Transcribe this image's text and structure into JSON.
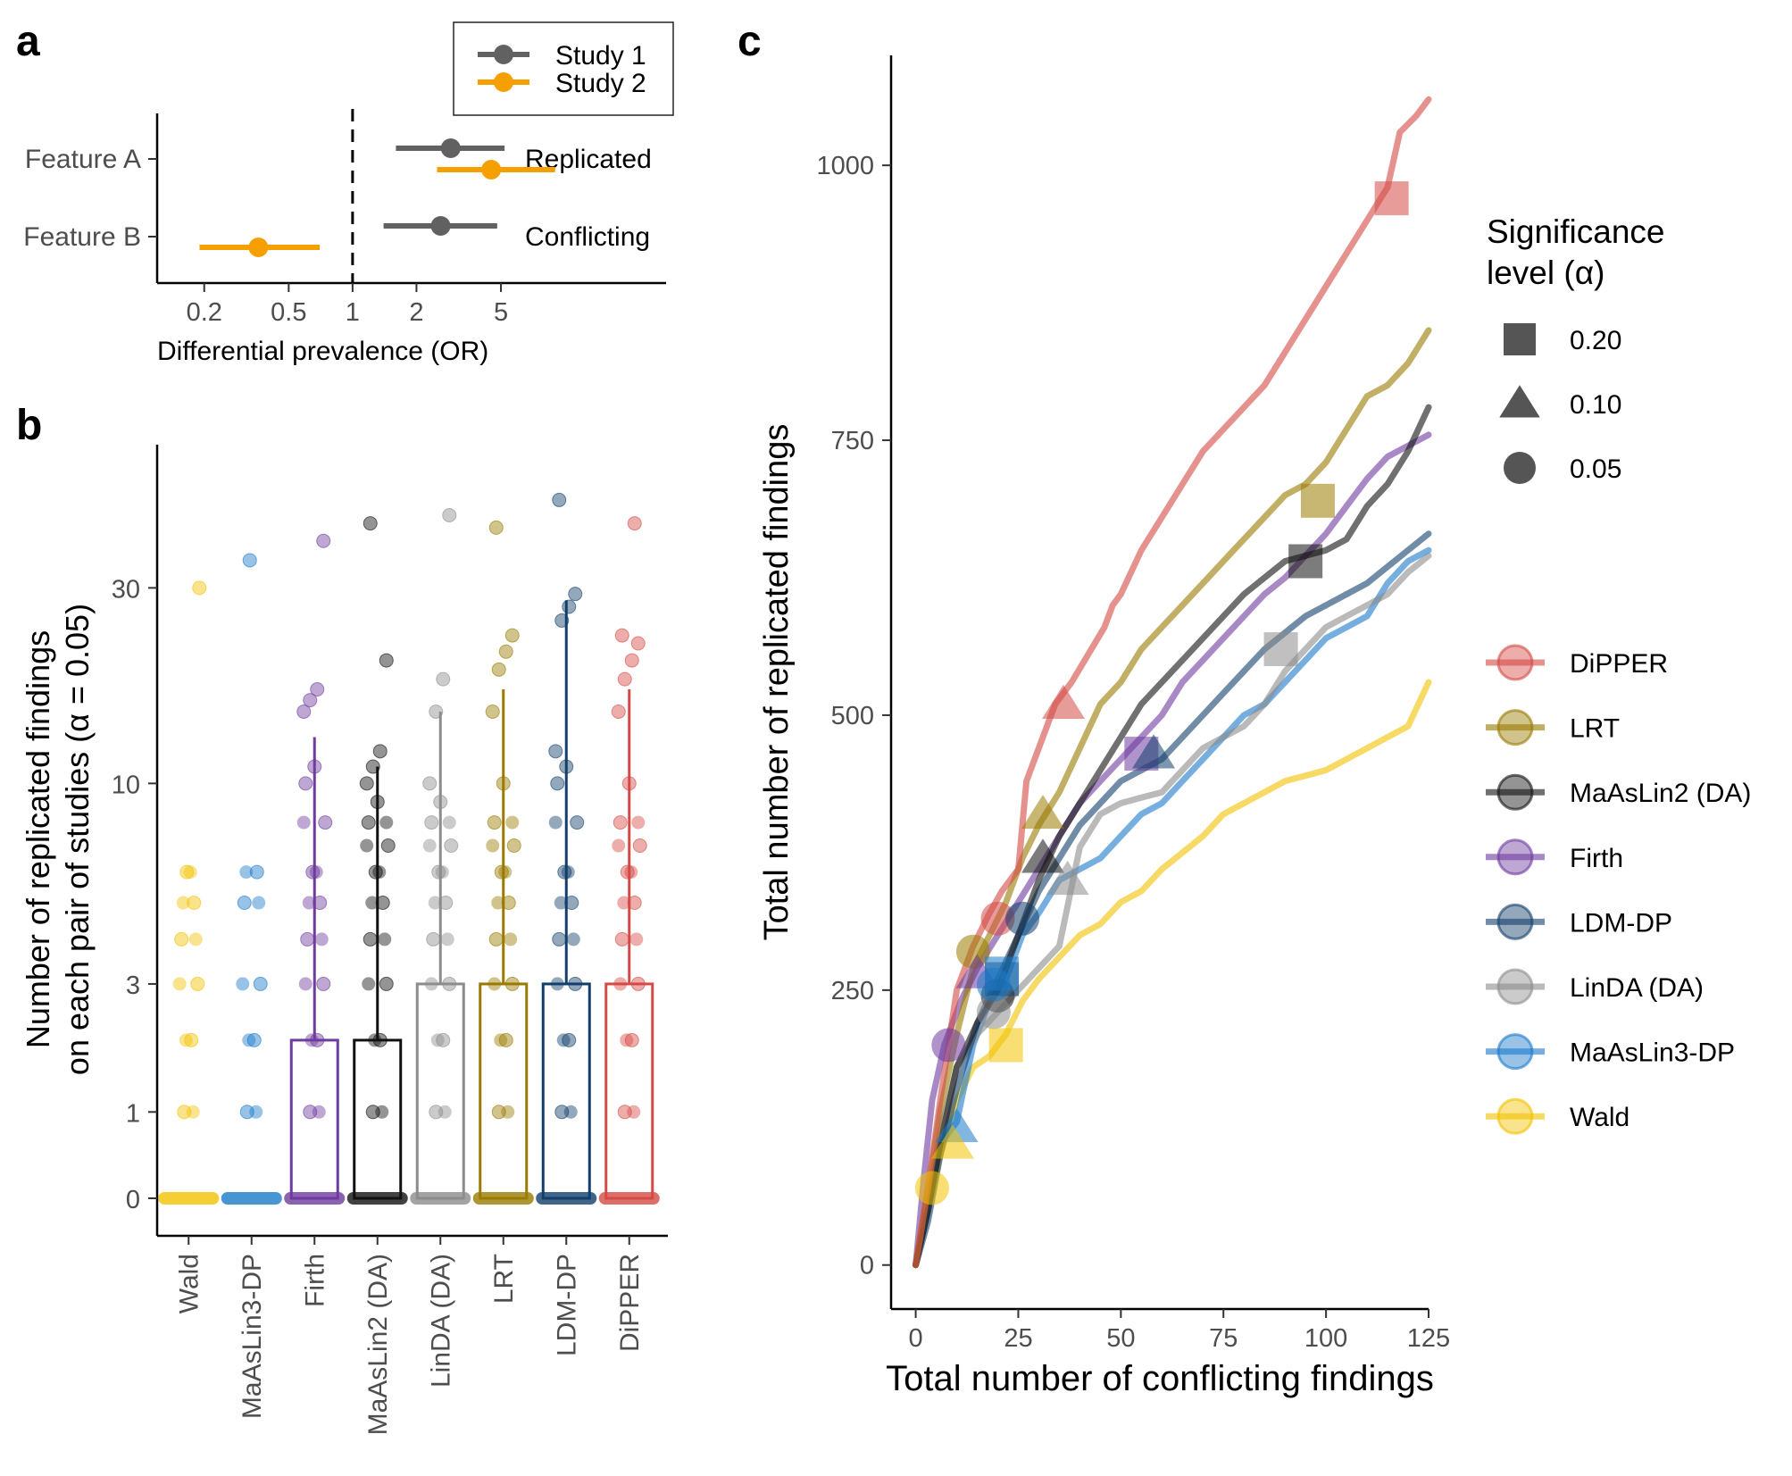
{
  "panel_labels": {
    "a": "a",
    "b": "b",
    "c": "c"
  },
  "colors": {
    "study1": "#616161",
    "study2": "#f5a000",
    "wald": "#f2c200",
    "maaslin3dp": "#1a7ac9",
    "firth": "#6e3b9e",
    "maaslin2": "#111111",
    "linda": "#8c8c8c",
    "lrt": "#9a7a00",
    "ldmdp": "#123f6b",
    "dipper": "#d44a45"
  },
  "chart_data": [
    {
      "id": "a",
      "type": "forest",
      "xlabel": "Differential prevalence (OR)",
      "x_scale": "log",
      "x_ticks": [
        0.2,
        0.5,
        1,
        2,
        5
      ],
      "x_tick_labels": [
        "0.2",
        "0.5",
        "1",
        "2",
        "5"
      ],
      "xlim": [
        0.12,
        30
      ],
      "reference_line": 1,
      "legend": [
        {
          "name": "Study 1",
          "color_key": "study1"
        },
        {
          "name": "Study 2",
          "color_key": "study2"
        }
      ],
      "rows": [
        {
          "feature": "Feature A",
          "annotation": "Replicated",
          "estimates": [
            {
              "study": "Study 1",
              "or": 2.9,
              "lo": 1.6,
              "hi": 5.2
            },
            {
              "study": "Study 2",
              "or": 4.5,
              "lo": 2.5,
              "hi": 9.0
            }
          ]
        },
        {
          "feature": "Feature B",
          "annotation": "Conflicting",
          "estimates": [
            {
              "study": "Study 1",
              "or": 2.6,
              "lo": 1.4,
              "hi": 4.8
            },
            {
              "study": "Study 2",
              "or": 0.36,
              "lo": 0.19,
              "hi": 0.7
            }
          ]
        }
      ]
    },
    {
      "id": "b",
      "type": "bar",
      "ylabel": [
        "Number of replicated findings",
        "on each pair of studies (α = 0.05)"
      ],
      "y_scale": "pseudo-log",
      "y_ticks": [
        0,
        1,
        3,
        10,
        30
      ],
      "y_tick_labels": [
        "0",
        "1",
        "3",
        "10",
        "30"
      ],
      "categories": [
        "Wald",
        "MaAsLin3-DP",
        "Firth",
        "MaAsLin2 (DA)",
        "LinDA (DA)",
        "LRT",
        "LDM-DP",
        "DiPPER"
      ],
      "color_keys": [
        "wald",
        "maaslin3dp",
        "firth",
        "maaslin2",
        "linda",
        "lrt",
        "ldmdp",
        "dipper"
      ],
      "median": [
        0,
        0,
        2,
        2,
        3,
        3,
        3,
        3
      ],
      "whisker_top": [
        0,
        0,
        13,
        11,
        15,
        17,
        28,
        17
      ],
      "points": [
        [
          0,
          1,
          2,
          3,
          4,
          5,
          6,
          30
        ],
        [
          0,
          1,
          2,
          3,
          5,
          6,
          35
        ],
        [
          0,
          1,
          2,
          3,
          4,
          5,
          6,
          8,
          10,
          11,
          15,
          16,
          17,
          39
        ],
        [
          0,
          1,
          2,
          3,
          4,
          5,
          6,
          7,
          8,
          9,
          10,
          11,
          12,
          20,
          43
        ],
        [
          0,
          1,
          2,
          3,
          4,
          5,
          6,
          7,
          8,
          9,
          10,
          15,
          18,
          45
        ],
        [
          0,
          1,
          2,
          3,
          4,
          5,
          6,
          7,
          8,
          10,
          15,
          19,
          21,
          23,
          42
        ],
        [
          0,
          1,
          2,
          3,
          4,
          5,
          6,
          8,
          10,
          11,
          12,
          25,
          27,
          29,
          49
        ],
        [
          0,
          1,
          2,
          3,
          4,
          5,
          6,
          7,
          8,
          10,
          15,
          18,
          20,
          22,
          23,
          43
        ]
      ]
    },
    {
      "id": "c",
      "type": "line",
      "xlabel": "Total number of conflicting findings",
      "ylabel": "Total number of replicated findings",
      "xlim": [
        -6,
        125
      ],
      "ylim": [
        -40,
        1100
      ],
      "x_ticks": [
        0,
        25,
        50,
        75,
        100,
        125
      ],
      "y_ticks": [
        0,
        250,
        500,
        750,
        1000
      ],
      "legend_title": [
        "Significance",
        "level (α)"
      ],
      "shape_legend": [
        {
          "shape": "square",
          "label": "0.20"
        },
        {
          "shape": "triangle",
          "label": "0.10"
        },
        {
          "shape": "circle",
          "label": "0.05"
        }
      ],
      "series": [
        {
          "name": "DiPPER",
          "color_key": "dipper",
          "x": [
            0,
            3,
            6,
            10,
            14,
            18,
            21,
            25,
            27,
            30,
            34,
            38,
            42,
            46,
            48,
            50,
            55,
            60,
            65,
            70,
            75,
            80,
            85,
            90,
            95,
            100,
            105,
            110,
            115,
            118,
            122,
            125
          ],
          "y": [
            0,
            70,
            150,
            250,
            290,
            320,
            340,
            360,
            440,
            470,
            510,
            530,
            555,
            580,
            600,
            610,
            650,
            680,
            710,
            740,
            760,
            780,
            800,
            830,
            860,
            890,
            920,
            950,
            980,
            1030,
            1045,
            1060
          ],
          "markers": {
            "0.05": [
              20,
              315
            ],
            "0.10": [
              36,
              510
            ],
            "0.20": [
              116,
              970
            ]
          }
        },
        {
          "name": "LRT",
          "color_key": "lrt",
          "x": [
            0,
            3,
            6,
            10,
            14,
            18,
            22,
            26,
            30,
            35,
            40,
            45,
            50,
            55,
            60,
            65,
            70,
            75,
            80,
            85,
            90,
            95,
            100,
            105,
            110,
            115,
            120,
            125
          ],
          "y": [
            0,
            70,
            140,
            210,
            270,
            300,
            330,
            370,
            400,
            430,
            470,
            510,
            530,
            560,
            580,
            600,
            620,
            640,
            660,
            680,
            700,
            710,
            730,
            760,
            790,
            800,
            820,
            850
          ],
          "markers": {
            "0.05": [
              14,
              285
            ],
            "0.10": [
              31,
              410
            ],
            "0.20": [
              98,
              695
            ]
          }
        },
        {
          "name": "MaAsLin2 (DA)",
          "color_key": "maaslin2",
          "x": [
            0,
            3,
            6,
            10,
            15,
            20,
            25,
            30,
            35,
            40,
            45,
            50,
            55,
            60,
            65,
            70,
            75,
            80,
            85,
            90,
            95,
            100,
            105,
            110,
            115,
            120,
            125
          ],
          "y": [
            0,
            50,
            110,
            180,
            220,
            250,
            300,
            350,
            390,
            420,
            450,
            480,
            510,
            530,
            550,
            570,
            590,
            610,
            625,
            640,
            645,
            650,
            660,
            690,
            710,
            740,
            780
          ],
          "markers": {
            "0.05": [
              20,
              245
            ],
            "0.10": [
              31,
              370
            ],
            "0.20": [
              95,
              640
            ]
          }
        },
        {
          "name": "Firth",
          "color_key": "firth",
          "x": [
            0,
            2,
            4,
            7,
            11,
            15,
            20,
            25,
            30,
            35,
            40,
            45,
            50,
            55,
            60,
            65,
            70,
            75,
            80,
            85,
            90,
            95,
            100,
            105,
            110,
            115,
            120,
            125
          ],
          "y": [
            0,
            80,
            150,
            200,
            240,
            270,
            300,
            330,
            360,
            390,
            420,
            440,
            460,
            480,
            500,
            530,
            550,
            570,
            590,
            610,
            625,
            645,
            665,
            690,
            715,
            735,
            745,
            755
          ],
          "markers": {
            "0.05": [
              8,
              200
            ],
            "0.10": [
              15,
              265
            ],
            "0.20": [
              55,
              465
            ]
          }
        },
        {
          "name": "LDM-DP",
          "color_key": "ldmdp",
          "x": [
            0,
            3,
            6,
            10,
            15,
            20,
            25,
            30,
            35,
            40,
            45,
            50,
            55,
            60,
            65,
            70,
            75,
            80,
            85,
            90,
            95,
            100,
            105,
            110,
            115,
            120,
            125
          ],
          "y": [
            0,
            40,
            100,
            160,
            220,
            260,
            300,
            340,
            370,
            400,
            420,
            440,
            450,
            460,
            480,
            500,
            520,
            540,
            560,
            575,
            590,
            600,
            610,
            620,
            635,
            650,
            665
          ],
          "markers": {
            "0.05": [
              26,
              315
            ],
            "0.10": [
              58,
              465
            ],
            "0.20": [
              21,
              260
            ]
          }
        },
        {
          "name": "LinDA (DA)",
          "color_key": "linda",
          "x": [
            0,
            3,
            6,
            10,
            15,
            20,
            25,
            30,
            35,
            40,
            45,
            50,
            55,
            60,
            65,
            70,
            75,
            80,
            85,
            90,
            95,
            100,
            105,
            110,
            115,
            120,
            125
          ],
          "y": [
            0,
            60,
            120,
            180,
            210,
            230,
            250,
            270,
            290,
            380,
            410,
            420,
            425,
            430,
            450,
            470,
            480,
            490,
            510,
            540,
            560,
            580,
            590,
            600,
            610,
            630,
            645
          ],
          "markers": {
            "0.05": [
              19,
              230
            ],
            "0.10": [
              37,
              350
            ],
            "0.20": [
              89,
              560
            ]
          }
        },
        {
          "name": "MaAsLin3-DP",
          "color_key": "maaslin3dp",
          "x": [
            0,
            3,
            6,
            10,
            14,
            18,
            22,
            26,
            30,
            35,
            40,
            45,
            50,
            55,
            60,
            65,
            70,
            75,
            80,
            85,
            90,
            95,
            100,
            105,
            110,
            115,
            120,
            125
          ],
          "y": [
            0,
            50,
            110,
            130,
            200,
            240,
            260,
            300,
            320,
            350,
            360,
            370,
            390,
            410,
            420,
            440,
            460,
            480,
            500,
            510,
            530,
            550,
            570,
            580,
            590,
            620,
            640,
            650
          ],
          "markers": {
            "0.05": [
              19,
              255
            ],
            "0.10": [
              10,
              125
            ],
            "0.20": [
              21,
              265
            ]
          }
        },
        {
          "name": "Wald",
          "color_key": "wald",
          "x": [
            0,
            3,
            6,
            10,
            14,
            18,
            22,
            26,
            30,
            35,
            40,
            45,
            50,
            55,
            60,
            65,
            70,
            75,
            80,
            85,
            90,
            95,
            100,
            105,
            110,
            115,
            120,
            125
          ],
          "y": [
            0,
            50,
            100,
            150,
            180,
            190,
            210,
            240,
            260,
            280,
            300,
            310,
            330,
            340,
            360,
            375,
            390,
            410,
            420,
            430,
            440,
            445,
            450,
            460,
            470,
            480,
            490,
            530
          ],
          "markers": {
            "0.05": [
              4,
              70
            ],
            "0.10": [
              9,
              110
            ],
            "0.20": [
              22,
              200
            ]
          }
        }
      ]
    }
  ]
}
